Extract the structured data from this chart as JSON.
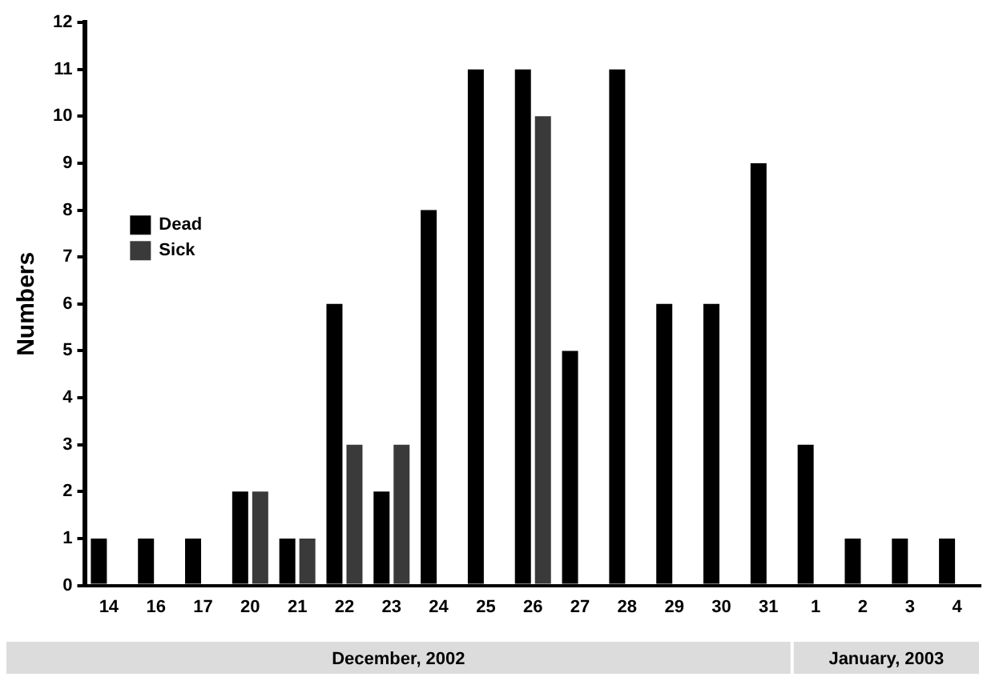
{
  "chart_data": {
    "type": "bar",
    "ylabel": "Numbers",
    "categories": [
      "14",
      "16",
      "17",
      "20",
      "21",
      "22",
      "23",
      "24",
      "25",
      "26",
      "27",
      "28",
      "29",
      "30",
      "31",
      "1",
      "2",
      "3",
      "4"
    ],
    "series": [
      {
        "name": "Dead",
        "color": "#000000",
        "values": [
          1,
          1,
          1,
          2,
          1,
          6,
          2,
          8,
          11,
          11,
          5,
          11,
          6,
          6,
          9,
          3,
          1,
          1,
          1
        ]
      },
      {
        "name": "Sick",
        "color": "#3a3a3a",
        "values": [
          0,
          0,
          0,
          2,
          1,
          3,
          3,
          0,
          0,
          10,
          0,
          0,
          0,
          0,
          0,
          0,
          0,
          0,
          0
        ]
      }
    ],
    "ylim": [
      0,
      12
    ],
    "yticks": [
      0,
      1,
      2,
      3,
      4,
      5,
      6,
      7,
      8,
      9,
      10,
      11,
      12
    ],
    "grid": false,
    "legend": "left",
    "annotations": [
      "December, 2002",
      "January, 2003"
    ]
  }
}
